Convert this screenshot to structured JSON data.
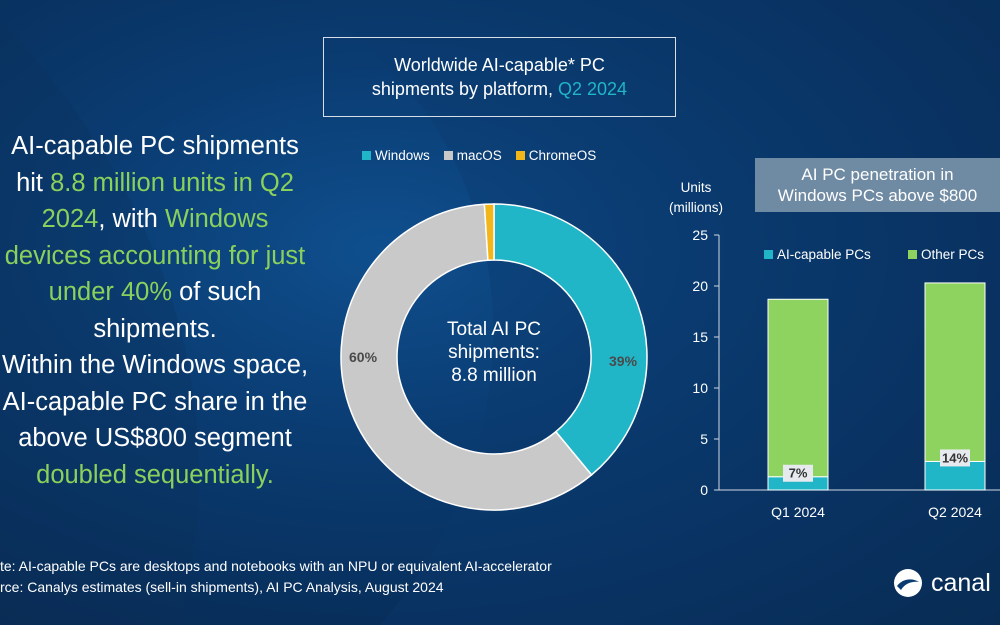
{
  "headline": {
    "l1": "AI-capable PC shipments",
    "l2a": "hit ",
    "l2b": "8.8 million units in Q2",
    "l3a": "2024",
    "l3b": ", with ",
    "l3c": "Windows",
    "l4": "devices accounting for just",
    "l5a": "under 40%",
    "l5b": " of such",
    "l6": "shipments.",
    "l7": "Within the Windows space,",
    "l8": "AI-capable PC share in the",
    "l9": "above US$800 segment",
    "l10": "doubled sequentially."
  },
  "title": {
    "line1": "Worldwide AI-capable* PC",
    "line2a": "shipments by platform, ",
    "line2b": "Q2 2024"
  },
  "donut_center": {
    "l1": "Total AI PC",
    "l2": "shipments:",
    "l3": "8.8 million"
  },
  "penetration_title": {
    "l1": "AI PC penetration in",
    "l2": "Windows PCs above $800"
  },
  "units_label": {
    "l1": "Units",
    "l2": "(millions)"
  },
  "footer": {
    "note": "te: AI-capable PCs are desktops and notebooks with an NPU or equivalent AI-accelerator",
    "source": "rce: Canalys estimates (sell-in shipments), AI PC Analysis, August 2024"
  },
  "logo": {
    "text": "canal"
  },
  "colors": {
    "windows": "#21b5c8",
    "macos": "#c9c9c9",
    "chromeos": "#f2b51a",
    "other_pcs": "#8ed25f",
    "ai_pcs": "#21b5c8",
    "text_green": "#8ad15c"
  },
  "chart_data": [
    {
      "type": "pie",
      "title": "Worldwide AI-capable* PC shipments by platform, Q2 2024",
      "donut": true,
      "categories": [
        "Windows",
        "macOS",
        "ChromeOS"
      ],
      "values": [
        39,
        60,
        1
      ],
      "data_labels": [
        "39%",
        "60%",
        ""
      ],
      "legend_position": "top"
    },
    {
      "type": "bar",
      "stacked": true,
      "title": "AI PC penetration in Windows PCs above $800",
      "categories": [
        "Q1 2024",
        "Q2 2024"
      ],
      "series": [
        {
          "name": "AI-capable PCs",
          "values": [
            1.3,
            2.8
          ]
        },
        {
          "name": "Other PCs",
          "values": [
            17.4,
            17.5
          ]
        }
      ],
      "data_labels": [
        "7%",
        "14%"
      ],
      "ylabel": "Units (millions)",
      "ylim": [
        0,
        25
      ],
      "yticks": [
        0,
        5,
        10,
        15,
        20,
        25
      ],
      "legend_position": "top",
      "grid": false
    }
  ]
}
